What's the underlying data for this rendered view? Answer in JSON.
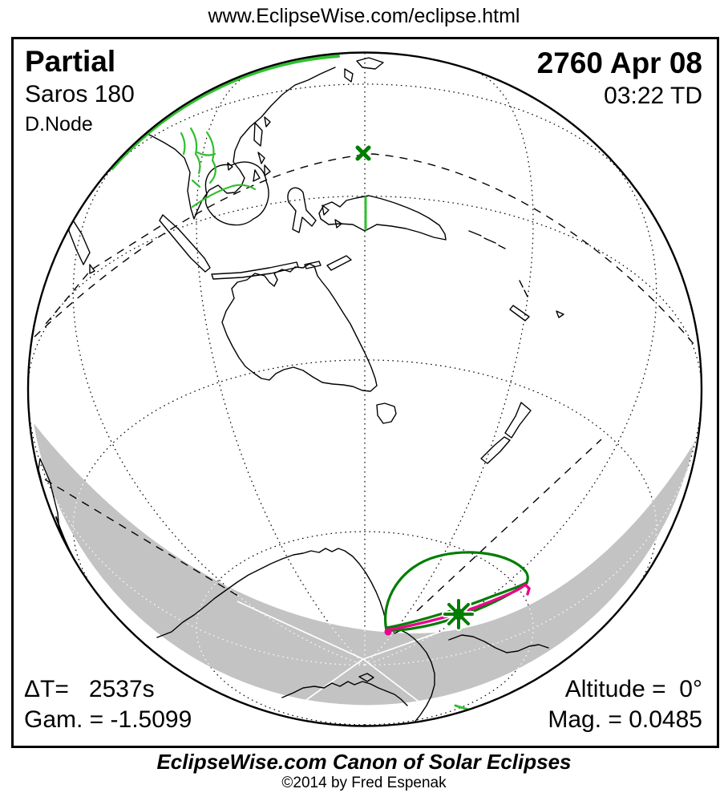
{
  "url_line": "www.EclipseWise.com/eclipse.html",
  "header": {
    "eclipse_type": "Partial",
    "saros": "Saros 180",
    "node": "D.Node",
    "date": "2760 Apr 08",
    "time": "03:22 TD"
  },
  "stats": {
    "delta_t": "ΔT=   2537s",
    "gamma": "Gam. = -1.5099",
    "altitude": "Altitude =  0°",
    "magnitude": "Mag. = 0.0485"
  },
  "footer": {
    "title": "EclipseWise.com Canon of Solar Eclipses",
    "copyright": "©2014 by Fred Espenak"
  },
  "map": {
    "type": "orthographic-globe",
    "markers": {
      "subsolar_marker": "x-cross",
      "greatest_eclipse_marker": "asterisk-star"
    }
  },
  "colors": {
    "eclipse_curve_green": "#007d00",
    "political_border_green": "#2fbf2f",
    "max_eclipse_magenta": "#ec008c",
    "night_shade_gray": "#c3c3c3",
    "land_outline": "#000000",
    "background": "#ffffff"
  },
  "chart_data": {
    "type": "map",
    "title": "Partial Solar Eclipse of 2760 Apr 08",
    "projection_center": "southern hemisphere view over Australia / Antarctica",
    "eclipse_type": "Partial",
    "saros_series": 180,
    "node": "Descending Node",
    "greatest_eclipse_time_td": "03:22 TD",
    "delta_t_seconds": 2537,
    "gamma": -1.5099,
    "sun_altitude_deg": 0,
    "magnitude": 0.0485,
    "visibility_region": "small cap near Antarctica (south polar region)",
    "legend_semantics": {
      "dark_green_loop": "penumbral eclipse visibility limit",
      "magenta_curve": "maximum eclipse at sunrise/sunset curve",
      "asterisk": "point of greatest eclipse",
      "x_mark": "subsolar point",
      "gray_area": "night side of Earth",
      "bright_green_lines": "political boundaries"
    }
  }
}
